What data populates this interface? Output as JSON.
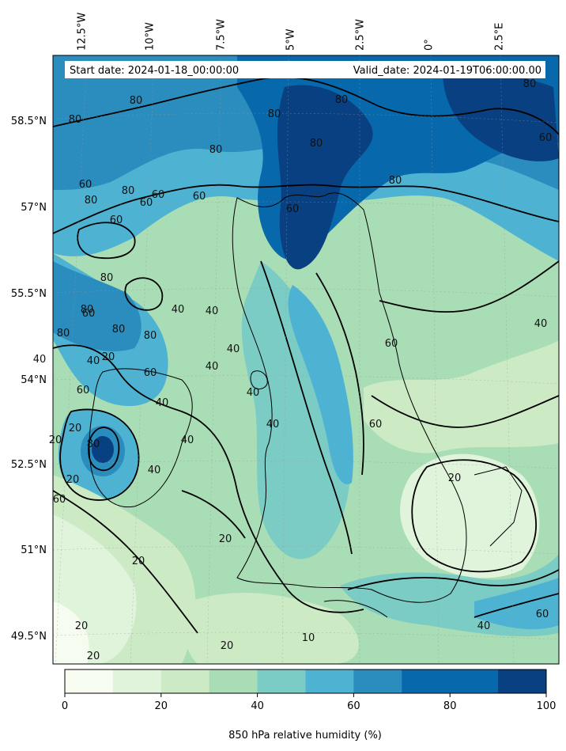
{
  "map": {
    "start_date": "Start date: 2024-01-18_00:00:00",
    "valid_date": "Valid_date: 2024-01-19T06:00:00.00",
    "lon_labels": [
      "12.5°W",
      "10°W",
      "7.5°W",
      "5°W",
      "2.5°W",
      "0°",
      "2.5°E"
    ],
    "lat_labels": [
      "58.5°N",
      "57°N",
      "55.5°N",
      "54°N",
      "52.5°N",
      "51°N",
      "49.5°N"
    ],
    "contour_labels": [
      "80",
      "80",
      "80",
      "80",
      "80",
      "80",
      "80",
      "80",
      "80",
      "80",
      "80",
      "80",
      "80",
      "80",
      "80",
      "80",
      "60",
      "60",
      "60",
      "60",
      "60",
      "60",
      "60",
      "60",
      "60",
      "60",
      "60",
      "60",
      "60",
      "60",
      "40",
      "40",
      "40",
      "40",
      "40",
      "40",
      "40",
      "40",
      "40",
      "40",
      "40",
      "40",
      "40",
      "20",
      "20",
      "20",
      "20",
      "20",
      "20",
      "20",
      "20",
      "20",
      "20",
      "10"
    ],
    "colorbar": {
      "ticks": [
        "0",
        "20",
        "40",
        "60",
        "80",
        "100"
      ],
      "colors": [
        "#f7fcf0",
        "#e0f3db",
        "#ccebc5",
        "#a8ddb5",
        "#7bccc4",
        "#4eb3d3",
        "#2b8cbe",
        "#0868ac",
        "#0868ac",
        "#084081"
      ],
      "label": "850 hPa relative humidity (%)"
    }
  }
}
